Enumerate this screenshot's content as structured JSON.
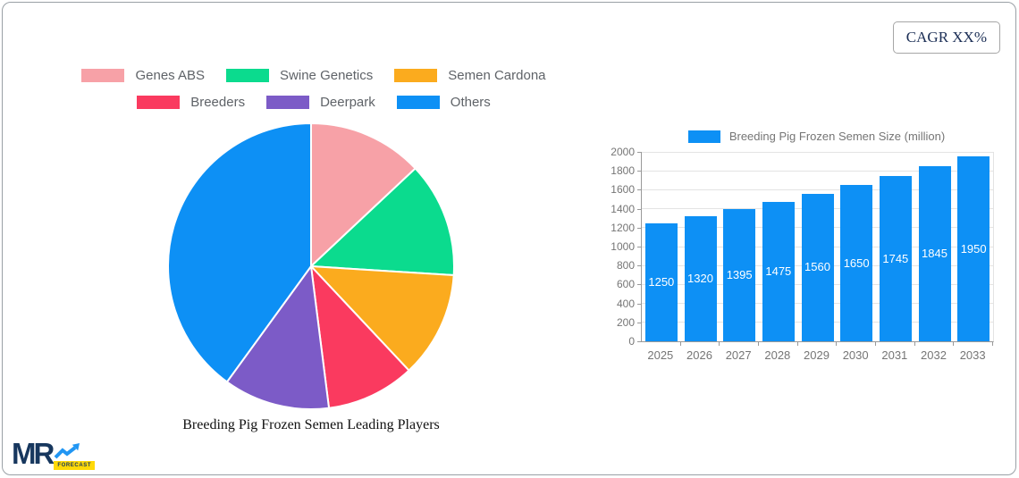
{
  "cagr_badge": {
    "label": "CAGR XX%"
  },
  "logo": {
    "mr_text": "MR",
    "forecast_text": "FORECAST",
    "navy": "#17375e",
    "arrow_blue": "#2196f3",
    "yellow": "#ffd908"
  },
  "pie_section": {
    "title": "Breeding Pig Frozen Semen Leading Players"
  },
  "bar_section": {
    "legend_label": "Breeding Pig Frozen Semen Size (million)"
  },
  "colors": {
    "bar_blue": "#0d90f5",
    "grid": "#e3e3e3",
    "axis": "#999999",
    "tick_text": "#757575",
    "legend_text": "#5f6368"
  },
  "chart_data": [
    {
      "type": "pie",
      "title": "Breeding Pig Frozen Semen Leading Players",
      "legend_position": "top",
      "start_angle_deg": 0,
      "direction": "clockwise",
      "slices": [
        {
          "label": "Genes ABS",
          "value": 13,
          "color": "#f7a1a7"
        },
        {
          "label": "Swine Genetics",
          "value": 13,
          "color": "#0bdb8e"
        },
        {
          "label": "Semen Cardona",
          "value": 12,
          "color": "#fbab1e"
        },
        {
          "label": "Breeders",
          "value": 10,
          "color": "#fa3a5f"
        },
        {
          "label": "Deerpark",
          "value": 12,
          "color": "#7c5bc7"
        },
        {
          "label": "Others",
          "value": 40,
          "color": "#0d90f5"
        }
      ]
    },
    {
      "type": "bar",
      "legend_label": "Breeding Pig Frozen Semen Size (million)",
      "categories": [
        "2025",
        "2026",
        "2027",
        "2028",
        "2029",
        "2030",
        "2031",
        "2032",
        "2033"
      ],
      "values": [
        1250,
        1320,
        1395,
        1475,
        1560,
        1650,
        1745,
        1845,
        1950
      ],
      "bar_color": "#0d90f5",
      "value_labels": "inside-middle",
      "xlabel": "",
      "ylabel": "",
      "ylim": [
        0,
        2000
      ],
      "y_ticks": [
        0,
        200,
        400,
        600,
        800,
        1000,
        1200,
        1400,
        1600,
        1800,
        2000
      ],
      "grid": true
    }
  ]
}
